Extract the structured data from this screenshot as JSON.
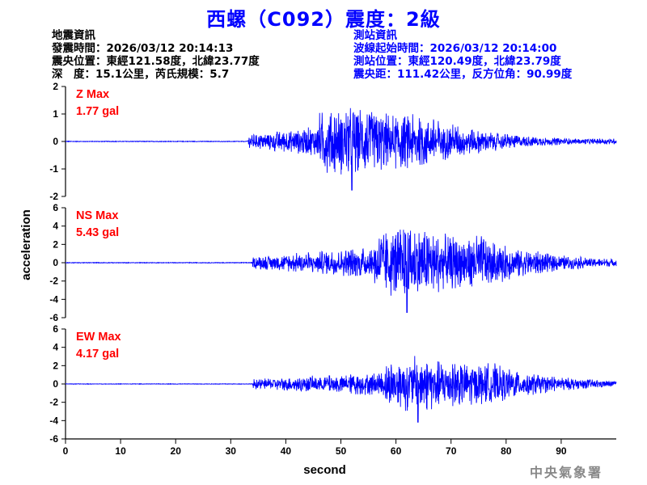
{
  "title": "西螺（C092）震度：2級",
  "quake_info": {
    "heading": "地震資訊",
    "origin_time": "發震時間：2026/03/12 20:14:13",
    "epicenter": "震央位置：東經121.58度，北緯23.77度",
    "depth_magnitude": "深　度：15.1公里，芮氏規模：5.7"
  },
  "station_info": {
    "heading": "測站資訊",
    "waveform_start": "波線起始時間：2026/03/12 20:14:00",
    "station_location": "測站位置：東經120.49度，北緯23.79度",
    "distance_azimuth": "震央距：111.42公里，反方位角：90.99度"
  },
  "agency": "中央氣象署",
  "chart_data": {
    "type": "line",
    "xlabel": "second",
    "ylabel": "acceleration",
    "xlim": [
      0,
      100
    ],
    "xticks": [
      0,
      10,
      20,
      30,
      40,
      50,
      60,
      70,
      80,
      90
    ],
    "line_color": "#0000ff",
    "panels": [
      {
        "component": "Z",
        "max_title": "Z Max",
        "max_value": "1.77 gal",
        "ylim": [
          -2,
          2
        ],
        "yticks": [
          -2,
          -1,
          0,
          1,
          2
        ],
        "onset_seconds": 33,
        "peak_seconds": 52,
        "peak_value": -1.77
      },
      {
        "component": "NS",
        "max_title": "NS Max",
        "max_value": "5.43 gal",
        "ylim": [
          -6,
          6
        ],
        "yticks": [
          -6,
          -4,
          -2,
          0,
          2,
          4,
          6
        ],
        "onset_seconds": 34,
        "peak_seconds": 62,
        "peak_value": -5.43
      },
      {
        "component": "EW",
        "max_title": "EW Max",
        "max_value": "4.17 gal",
        "ylim": [
          -6,
          6
        ],
        "yticks": [
          -6,
          -4,
          -2,
          0,
          2,
          4,
          6
        ],
        "onset_seconds": 34,
        "peak_seconds": 64,
        "peak_value": -4.17
      }
    ]
  }
}
